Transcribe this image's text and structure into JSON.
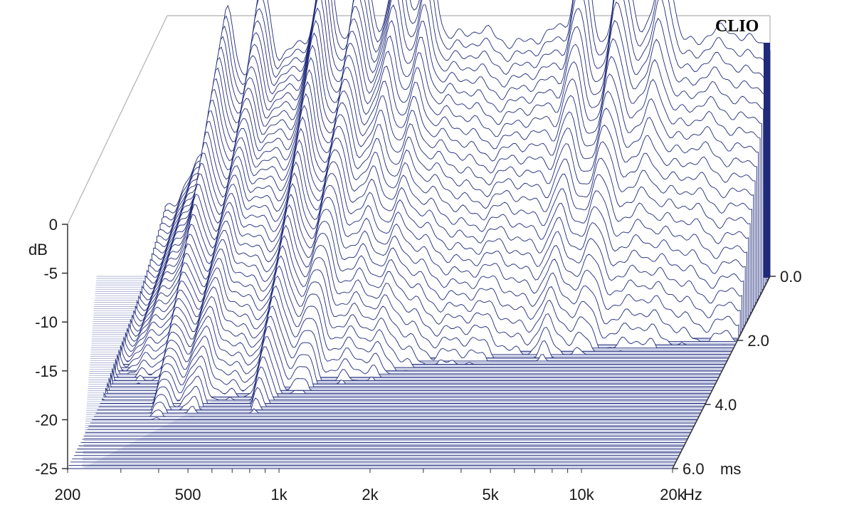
{
  "chart_data": {
    "type": "waterfall",
    "brand": "CLIO",
    "y_axis": {
      "label": "dB",
      "ticks": [
        "0",
        "-5",
        "-10",
        "-15",
        "-20",
        "-25"
      ],
      "range": [
        -25,
        0
      ]
    },
    "x_axis": {
      "unit": "Hz",
      "ticks": [
        "200",
        "500",
        "1k",
        "2k",
        "5k",
        "10k",
        "20k"
      ],
      "range": [
        200,
        20000
      ],
      "scale": "log"
    },
    "z_axis": {
      "unit": "ms",
      "ticks": [
        "0.0",
        "2.0",
        "4.0",
        "6.0"
      ],
      "range": [
        0,
        6
      ]
    },
    "colors": {
      "trace": "#1f2a7a",
      "floor": "#3a4899",
      "frame": "#b0b0b0",
      "axis": "#333333"
    }
  }
}
